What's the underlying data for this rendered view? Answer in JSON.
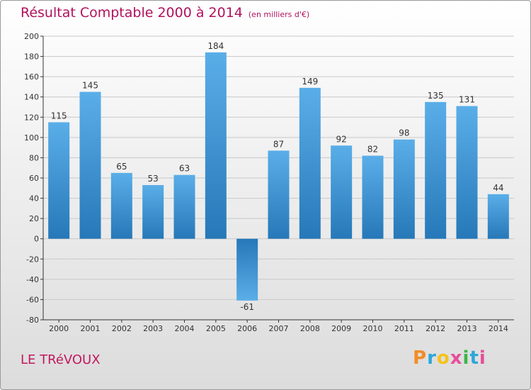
{
  "header": {
    "title": "Résultat Comptable 2000 à 2014",
    "unit": "(en milliers d'€)"
  },
  "footer": {
    "city": "LE TRéVOUX",
    "logo": [
      "P",
      "r",
      "o",
      "x",
      "i",
      "t",
      "i"
    ]
  },
  "colors": {
    "title": "#b0125e",
    "bar_top": "#5aaee8",
    "bar_bottom": "#2678b8"
  },
  "chart_data": {
    "type": "bar",
    "title": "Résultat Comptable 2000 à 2014",
    "categories": [
      "2000",
      "2001",
      "2002",
      "2003",
      "2004",
      "2005",
      "2006",
      "2007",
      "2008",
      "2009",
      "2010",
      "2011",
      "2012",
      "2013",
      "2014"
    ],
    "values": [
      115,
      145,
      65,
      53,
      63,
      184,
      -61,
      87,
      149,
      92,
      82,
      98,
      135,
      131,
      44
    ],
    "ylim": [
      -80,
      200
    ],
    "yticks": [
      200,
      180,
      160,
      140,
      120,
      100,
      80,
      60,
      40,
      20,
      0,
      -20,
      -40,
      -60,
      -80
    ],
    "grid": true,
    "xlabel": "",
    "ylabel": ""
  }
}
